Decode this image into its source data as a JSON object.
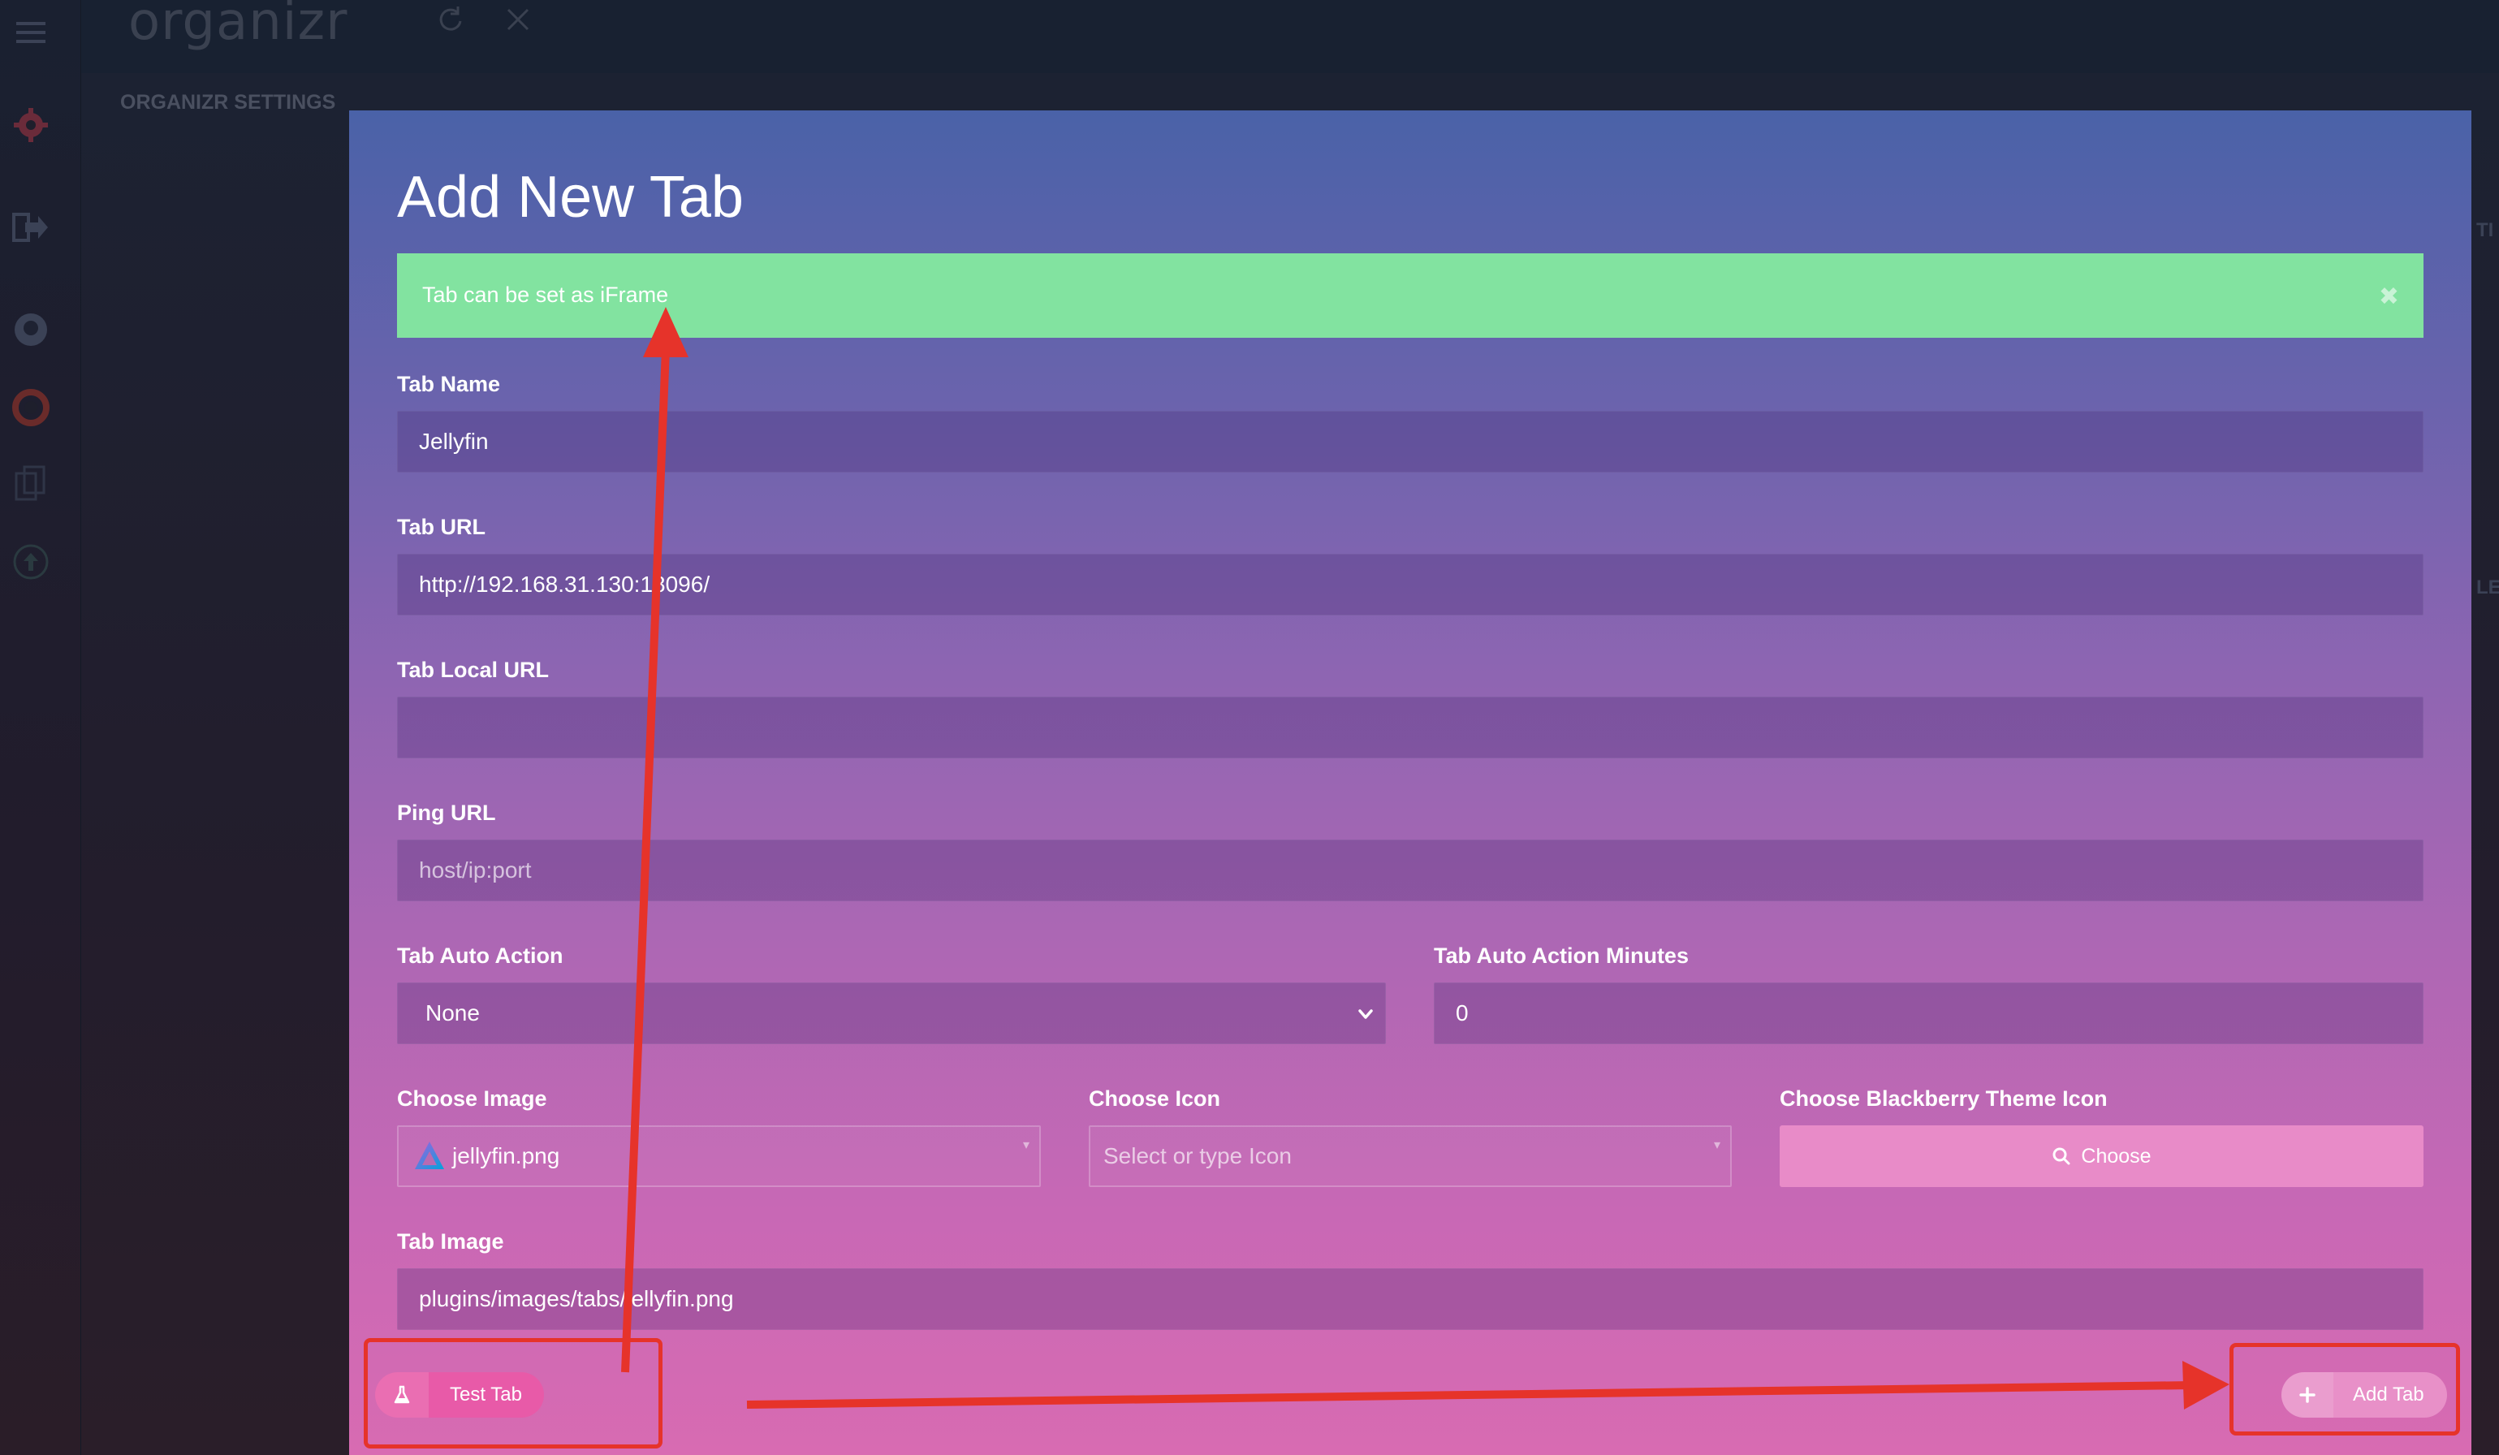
{
  "app": {
    "logo": "organizr",
    "settings_title": "ORGANIZR SETTINGS",
    "sidebar_icons": [
      "menu-icon",
      "gear-icon",
      "logout-icon",
      "github-icon",
      "lifebuoy-icon",
      "copy-icon",
      "upload-icon"
    ],
    "top_icons": [
      "refresh-icon",
      "close-icon"
    ]
  },
  "modal": {
    "title": "Add New Tab",
    "alert": {
      "text": "Tab can be set as iFrame",
      "close": "✖",
      "color": "#82e3a0"
    },
    "fields": {
      "tab_name": {
        "label": "Tab Name",
        "value": "Jellyfin"
      },
      "tab_url": {
        "label": "Tab URL",
        "value": "http://192.168.31.130:18096/"
      },
      "tab_local_url": {
        "label": "Tab Local URL",
        "value": ""
      },
      "ping_url": {
        "label": "Ping URL",
        "placeholder": "host/ip:port"
      },
      "tab_auto_action": {
        "label": "Tab Auto Action",
        "value": "None"
      },
      "tab_auto_action_minutes": {
        "label": "Tab Auto Action Minutes",
        "value": "0"
      },
      "choose_image": {
        "label": "Choose Image",
        "value": "jellyfin.png"
      },
      "choose_icon": {
        "label": "Choose Icon",
        "placeholder": "Select or type Icon"
      },
      "choose_blackberry_icon": {
        "label": "Choose Blackberry Theme Icon",
        "button": "Choose"
      },
      "tab_image": {
        "label": "Tab Image",
        "value": "plugins/images/tabs/jellyfin.png"
      }
    },
    "buttons": {
      "test_tab": "Test Tab",
      "add_tab": "Add Tab"
    }
  },
  "colors": {
    "annotation_red": "#e6332a",
    "test_tab_bg": "#e85aa8",
    "add_tab_bg": "#e890c8"
  }
}
